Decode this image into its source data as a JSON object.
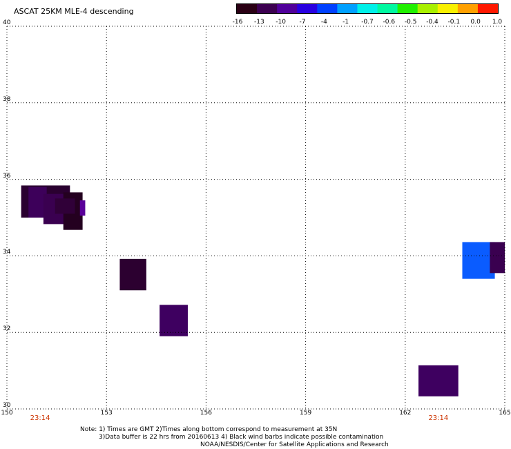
{
  "title": "ASCAT 25KM MLE-4 descending",
  "colorbar": {
    "labels": [
      "-16",
      "-13",
      "-10",
      "-7",
      "-4",
      "-1",
      "-0.7",
      "-0.6",
      "-0.5",
      "-0.4",
      "-0.1",
      "0.0",
      "1.0"
    ],
    "colors": [
      "#2a0014",
      "#3c0050",
      "#50009a",
      "#2800e0",
      "#0040ff",
      "#00a0ff",
      "#00f0e8",
      "#00f8a0",
      "#20f000",
      "#a8f000",
      "#f8f000",
      "#ffa000",
      "#ff1800"
    ]
  },
  "map": {
    "lon_range": [
      150,
      165
    ],
    "lat_range": [
      30,
      40
    ],
    "lon_ticks": [
      "150",
      "153",
      "156",
      "159",
      "162",
      "165"
    ],
    "lat_ticks": [
      "40",
      "38",
      "36",
      "34",
      "32",
      "30"
    ],
    "time_labels": [
      {
        "lon": 151,
        "text": "23:14"
      },
      {
        "lon": 163,
        "text": "23:14"
      }
    ],
    "cells": [
      {
        "lon0": 150.43,
        "lon1": 151.9,
        "lat0": 35.0,
        "lat1": 35.84,
        "color": "#2a0030"
      },
      {
        "lon0": 150.65,
        "lon1": 151.2,
        "lat0": 35.0,
        "lat1": 35.8,
        "color": "#3d005a"
      },
      {
        "lon0": 151.1,
        "lon1": 151.9,
        "lat0": 34.83,
        "lat1": 35.62,
        "color": "#3a0050"
      },
      {
        "lon0": 151.7,
        "lon1": 152.28,
        "lat0": 34.68,
        "lat1": 35.66,
        "color": "#240020"
      },
      {
        "lon0": 151.45,
        "lon1": 152.05,
        "lat0": 35.1,
        "lat1": 35.5,
        "color": "#300038"
      },
      {
        "lon0": 152.2,
        "lon1": 152.36,
        "lat0": 35.05,
        "lat1": 35.45,
        "color": "#5a009a"
      },
      {
        "lon0": 153.4,
        "lon1": 154.2,
        "lat0": 33.1,
        "lat1": 33.92,
        "color": "#2c0030"
      },
      {
        "lon0": 154.6,
        "lon1": 155.45,
        "lat0": 31.9,
        "lat1": 32.72,
        "color": "#3e0060"
      },
      {
        "lon0": 162.4,
        "lon1": 163.6,
        "lat0": 30.33,
        "lat1": 31.14,
        "color": "#3e0060"
      },
      {
        "lon0": 163.72,
        "lon1": 164.7,
        "lat0": 33.4,
        "lat1": 34.36,
        "color": "#0a5cff"
      },
      {
        "lon0": 164.55,
        "lon1": 165.0,
        "lat0": 33.55,
        "lat1": 34.36,
        "color": "#3a0050"
      }
    ]
  },
  "notes": [
    "Note: 1) Times are GMT 2)Times along bottom correspond to measurement at 35N",
    "3)Data buffer is 22 hrs from 20160613 4) Black wind barbs indicate possible contamination",
    "NOAA/NESDIS/Center for Satellite Applications and Research"
  ]
}
